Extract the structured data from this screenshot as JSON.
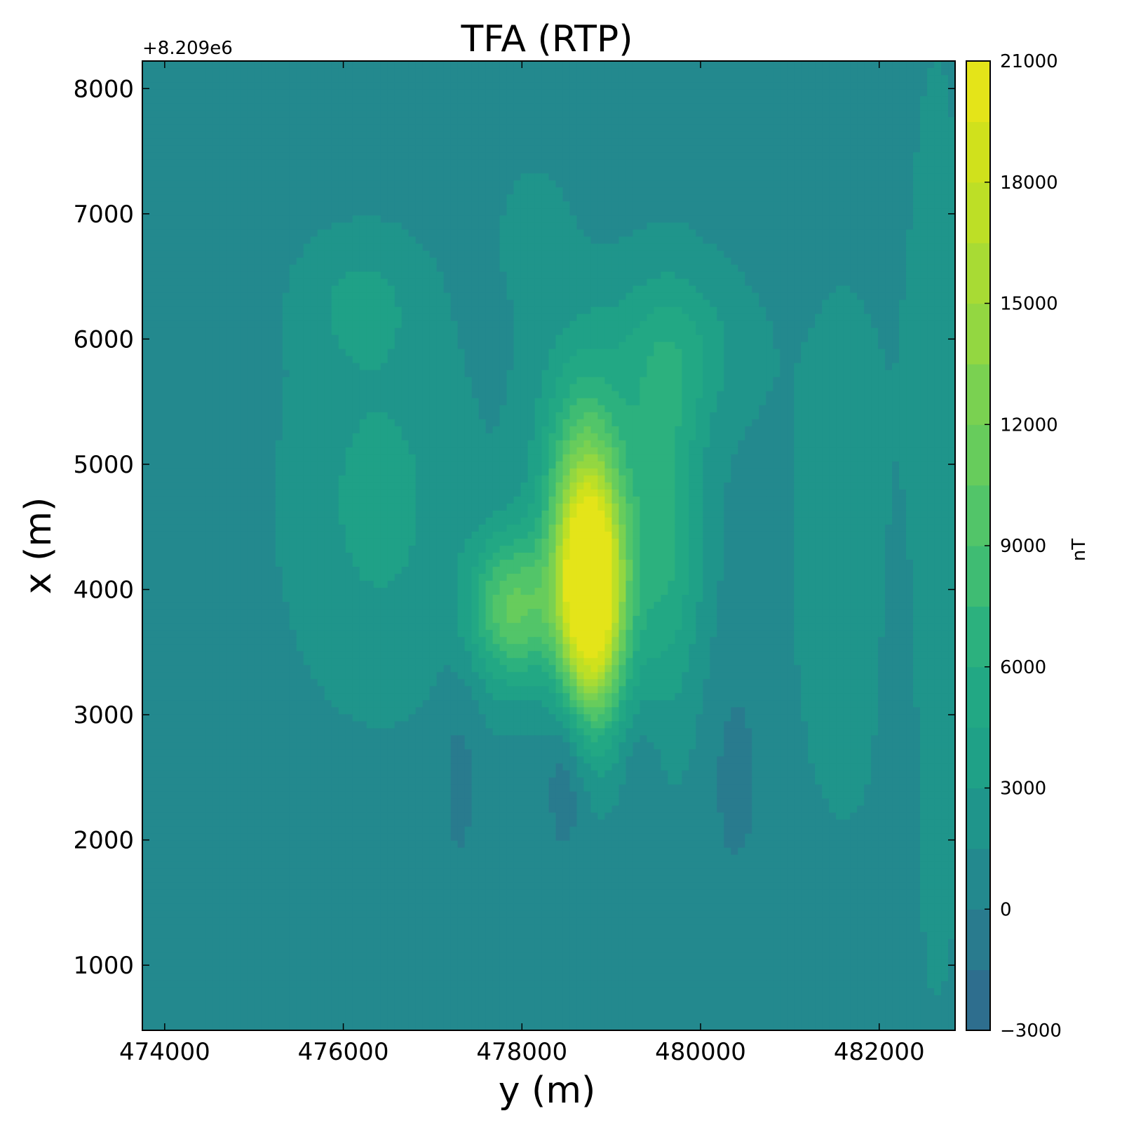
{
  "chart_data": {
    "type": "heatmap",
    "subtype": "filled-contour",
    "title": "TFA (RTP)",
    "xlabel": "y (m)",
    "ylabel": "x (m)",
    "y_offset_label": "+8.209e6",
    "xlim": [
      473750,
      482850
    ],
    "ylim": [
      480,
      8220
    ],
    "x_ticks": [
      474000,
      476000,
      478000,
      480000,
      482000
    ],
    "x_tick_labels": [
      "474000",
      "476000",
      "478000",
      "480000",
      "482000"
    ],
    "y_ticks": [
      1000,
      2000,
      3000,
      4000,
      5000,
      6000,
      7000,
      8000
    ],
    "y_tick_labels": [
      "1000",
      "2000",
      "3000",
      "4000",
      "5000",
      "6000",
      "7000",
      "8000"
    ],
    "colorbar": {
      "label": "nT",
      "range": [
        -3000,
        21000
      ],
      "ticks": [
        -3000,
        0,
        3000,
        6000,
        9000,
        12000,
        15000,
        18000,
        21000
      ],
      "tick_labels": [
        "−3000",
        "0",
        "3000",
        "6000",
        "9000",
        "12000",
        "15000",
        "18000",
        "21000"
      ],
      "levels": [
        -3000,
        -1500,
        0,
        1500,
        3000,
        4500,
        6000,
        7500,
        9000,
        10500,
        12000,
        13500,
        15000,
        16500,
        18000,
        19500,
        21000
      ],
      "colormap": "viridis",
      "colors": [
        "#2e6e8e",
        "#297b8e",
        "#23898e",
        "#1f958b",
        "#1fa187",
        "#22a884",
        "#2cb17e",
        "#3fbc73",
        "#52c569",
        "#67cc5c",
        "#7ad151",
        "#93d741",
        "#a8db34",
        "#bddf26",
        "#d0e11c",
        "#e4e419",
        "#fde725"
      ]
    },
    "background_level": 1000,
    "anomalies": [
      {
        "y": 478780,
        "x": 3900,
        "value": 20500,
        "sy": 260,
        "sx": 650
      },
      {
        "y": 478700,
        "x": 4450,
        "value": 8500,
        "sy": 300,
        "sx": 700
      },
      {
        "y": 477900,
        "x": 3850,
        "value": 9500,
        "sy": 330,
        "sx": 420
      },
      {
        "y": 478700,
        "x": 5300,
        "value": 3000,
        "sy": 420,
        "sx": 700
      },
      {
        "y": 479600,
        "x": 4500,
        "value": 5500,
        "sy": 300,
        "sx": 1000
      },
      {
        "y": 479750,
        "x": 5900,
        "value": 3200,
        "sy": 500,
        "sx": 450
      },
      {
        "y": 476400,
        "x": 4700,
        "value": 2500,
        "sy": 650,
        "sx": 1000
      },
      {
        "y": 476200,
        "x": 6300,
        "value": 2000,
        "sy": 450,
        "sx": 350
      },
      {
        "y": 478150,
        "x": 6800,
        "value": 1500,
        "sy": 250,
        "sx": 350
      },
      {
        "y": 478500,
        "x": 2600,
        "value": -2500,
        "sy": 170,
        "sx": 500
      },
      {
        "y": 477300,
        "x": 2500,
        "value": -1500,
        "sy": 160,
        "sx": 650
      },
      {
        "y": 479350,
        "x": 2450,
        "value": -1500,
        "sy": 150,
        "sx": 400
      },
      {
        "y": 480400,
        "x": 2500,
        "value": -1500,
        "sy": 250,
        "sx": 700
      },
      {
        "y": 482250,
        "x": 3000,
        "value": -800,
        "sy": 140,
        "sx": 1200
      },
      {
        "y": 474300,
        "x": 5100,
        "value": -600,
        "sy": 80,
        "sx": 450
      },
      {
        "y": 474300,
        "x": 2300,
        "value": -600,
        "sy": 100,
        "sx": 600
      },
      {
        "y": 482650,
        "x": 4500,
        "value": 1200,
        "sy": 250,
        "sx": 2800
      },
      {
        "y": 481600,
        "x": 4300,
        "value": 1000,
        "sy": 500,
        "sx": 1800
      }
    ]
  }
}
